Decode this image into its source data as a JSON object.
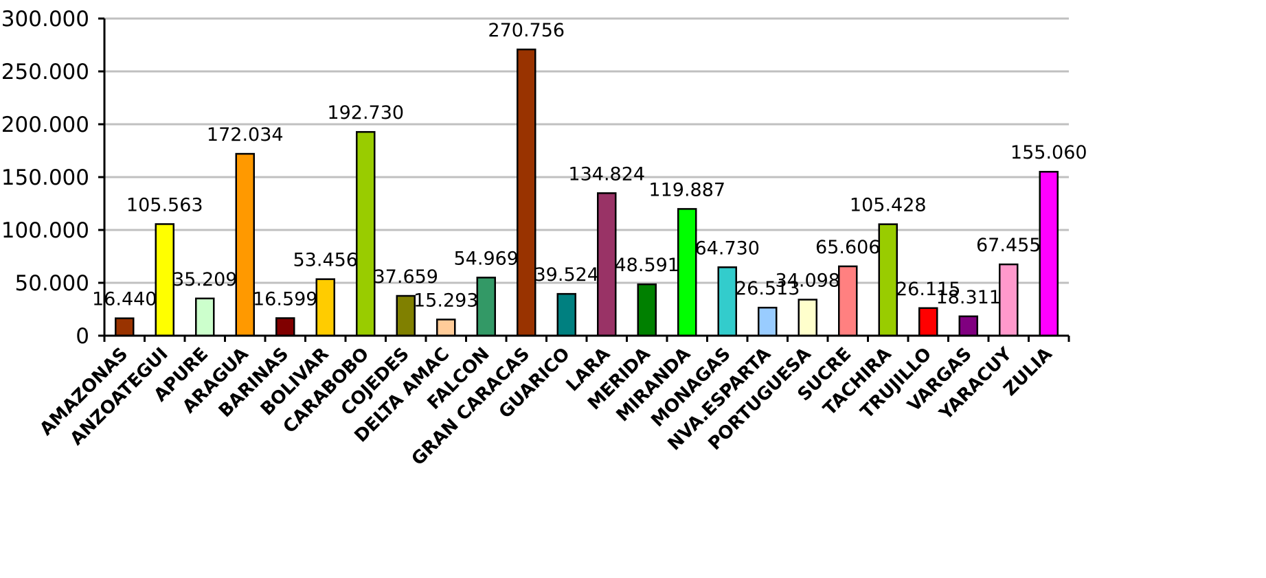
{
  "chart_data": {
    "type": "bar",
    "categories": [
      "AMAZONAS",
      "ANZOATEGUI",
      "APURE",
      "ARAGUA",
      "BARINAS",
      "BOLIVAR",
      "CARABOBO",
      "COJEDES",
      "DELTA AMAC",
      "FALCON",
      "GRAN CARACAS",
      "GUARICO",
      "LARA",
      "MERIDA",
      "MIRANDA",
      "MONAGAS",
      "NVA.ESPARTA",
      "PORTUGUESA",
      "SUCRE",
      "TACHIRA",
      "TRUJILLO",
      "VARGAS",
      "YARACUY",
      "ZULIA"
    ],
    "values": [
      16440,
      105563,
      35209,
      172034,
      16599,
      53456,
      192730,
      37659,
      15293,
      54969,
      270756,
      39524,
      134824,
      48591,
      119887,
      64730,
      26513,
      34098,
      65606,
      105428,
      26115,
      18311,
      67455,
      155060
    ],
    "value_labels": [
      "16.440",
      "105.563",
      "35.209",
      "172.034",
      "16.599",
      "53.456",
      "192.730",
      "37.659",
      "15.293",
      "54.969",
      "270.756",
      "39.524",
      "134.824",
      "48.591",
      "119.887",
      "64.730",
      "26.513",
      "34.098",
      "65.606",
      "105.428",
      "26.115",
      "18.311",
      "67.455",
      "155.060"
    ],
    "colors": [
      "#993300",
      "#ffff00",
      "#ccffcc",
      "#ff9900",
      "#800000",
      "#ffcc00",
      "#99cc00",
      "#808000",
      "#ffcc99",
      "#339966",
      "#993300",
      "#008080",
      "#993366",
      "#008000",
      "#00ff00",
      "#33cccc",
      "#99ccff",
      "#ffffcc",
      "#ff8080",
      "#99cc00",
      "#ff0000",
      "#800080",
      "#ff99cc",
      "#ff00ff"
    ],
    "ylim": [
      0,
      300000
    ],
    "yticks": [
      0,
      50000,
      100000,
      150000,
      200000,
      250000,
      300000
    ],
    "ytick_labels": [
      "0",
      "50.000",
      "100.000",
      "150.000",
      "200.000",
      "250.000",
      "300.000"
    ],
    "grid": true,
    "xlabel": "",
    "ylabel": "",
    "title": ""
  }
}
